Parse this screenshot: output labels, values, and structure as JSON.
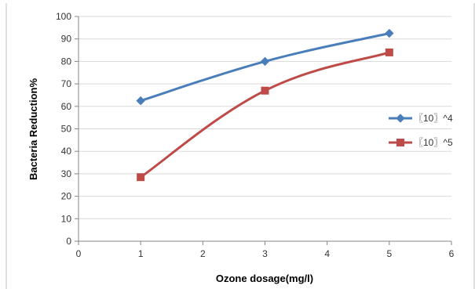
{
  "chart_data": {
    "type": "line",
    "title": "",
    "xlabel": "Ozone dosage(mg/l)",
    "ylabel": "Bacteria Reduction%",
    "xlim": [
      0,
      6
    ],
    "ylim": [
      0,
      100
    ],
    "xticks": [
      0,
      1,
      2,
      3,
      4,
      5,
      6
    ],
    "yticks": [
      0,
      10,
      20,
      30,
      40,
      50,
      60,
      70,
      80,
      90,
      100
    ],
    "grid": "horizontal",
    "legend_position": "right",
    "x": [
      1,
      3,
      5
    ],
    "series": [
      {
        "name": "〖10〗^4",
        "values": [
          62.5,
          80,
          92.5
        ],
        "color": "#4a7ebb",
        "marker": "diamond"
      },
      {
        "name": "〖10〗^5",
        "values": [
          28.5,
          67,
          84
        ],
        "color": "#be4b48",
        "marker": "square"
      }
    ]
  }
}
